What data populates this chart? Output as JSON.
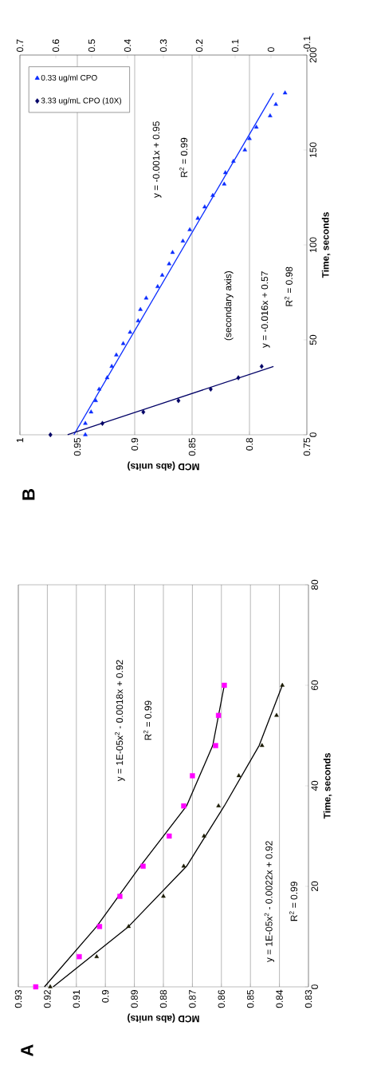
{
  "chart_data": [
    {
      "type": "scatter",
      "title": "A",
      "xlabel": "MCD (abs units)",
      "ylabel": "Time, seconds",
      "xlim": [
        0.93,
        0.83
      ],
      "xticks": [
        0.93,
        0.92,
        0.91,
        0.9,
        0.89,
        0.88,
        0.87,
        0.86,
        0.85,
        0.84,
        0.83
      ],
      "ylim": [
        0,
        80
      ],
      "yticks": [
        0,
        20,
        40,
        60,
        80
      ],
      "grid": "x",
      "series": [
        {
          "color": "#ff00ff",
          "marker": "square",
          "x": [
            0.924,
            0.909,
            0.902,
            0.895,
            0.887,
            0.878,
            0.873,
            0.87,
            0.862,
            0.861,
            0.859
          ],
          "values": [
            0,
            6,
            12,
            18,
            24,
            30,
            36,
            42,
            48,
            54,
            60
          ]
        },
        {
          "color": "#1a1a00",
          "marker": "triangle",
          "x": [
            0.919,
            0.903,
            0.892,
            0.88,
            0.873,
            0.866,
            0.861,
            0.854,
            0.846,
            0.841,
            0.839
          ],
          "values": [
            0,
            6,
            12,
            18,
            24,
            30,
            36,
            42,
            48,
            54,
            60
          ]
        },
        {
          "type": "line",
          "color": "#000000",
          "marker": "none",
          "x": [
            0.921,
            0.903,
            0.888,
            0.872,
            0.863,
            0.859
          ],
          "values": [
            0,
            12,
            24,
            36,
            48,
            60
          ]
        },
        {
          "type": "line",
          "color": "#000000",
          "marker": "none",
          "x": [
            0.918,
            0.892,
            0.872,
            0.859,
            0.847,
            0.839
          ],
          "values": [
            0,
            12,
            24,
            36,
            48,
            60
          ]
        }
      ],
      "annotations": [
        "y = 1E-05x$^{2}$ - 0.0018x + 0.92",
        "R$^{2}$ = 0.99",
        "y = 1E-05x$^{2}$ - 0.0022x + 0.92",
        "R$^{2}$ = 0.99"
      ]
    },
    {
      "type": "scatter",
      "title": "B",
      "xlabel": "MCD (abs units)",
      "ylabel": "Time, seconds",
      "xlim": [
        1,
        0.75
      ],
      "xticks": [
        1,
        0.95,
        0.9,
        0.85,
        0.8,
        0.75
      ],
      "x2lim": [
        0.7,
        -0.1
      ],
      "x2ticks": [
        0.7,
        0.6,
        0.5,
        0.4,
        0.3,
        0.2,
        0.1,
        0,
        -0.1
      ],
      "ylim": [
        0,
        200
      ],
      "yticks": [
        0,
        50,
        100,
        150,
        200
      ],
      "grid": "x",
      "legend": "top left",
      "series": [
        {
          "name": "0.33 ug/ml CPO",
          "color": "#0a2cff",
          "marker": "triangle",
          "x": [
            0.943,
            0.943,
            0.938,
            0.934,
            0.931,
            0.924,
            0.92,
            0.916,
            0.91,
            0.904,
            0.897,
            0.895,
            0.89,
            0.88,
            0.876,
            0.87,
            0.867,
            0.858,
            0.852,
            0.845,
            0.839,
            0.832,
            0.822,
            0.821,
            0.814,
            0.804,
            0.8,
            0.794,
            0.782,
            0.777,
            0.769
          ],
          "values": [
            0,
            6,
            12,
            18,
            24,
            30,
            36,
            42,
            48,
            54,
            60,
            66,
            72,
            78,
            84,
            90,
            96,
            102,
            108,
            114,
            120,
            126,
            132,
            138,
            144,
            150,
            156,
            162,
            168,
            174,
            180
          ]
        },
        {
          "name": "3.33 ug/mL CPO (10X)",
          "color": "#000066",
          "marker": "diamond",
          "axis": "x2",
          "x": [
            0.615,
            0.47,
            0.356,
            0.258,
            0.168,
            0.091,
            0.026
          ],
          "values": [
            0,
            6,
            12,
            18,
            24,
            30,
            36
          ]
        },
        {
          "type": "line",
          "color": "#0a2cff",
          "marker": "none",
          "x": [
            0.953,
            0.779
          ],
          "values": [
            0,
            180
          ]
        },
        {
          "type": "line",
          "color": "#000066",
          "marker": "none",
          "axis": "x2",
          "x": [
            0.567,
            -0.007
          ],
          "values": [
            0,
            36
          ]
        }
      ],
      "annotations": [
        "y = -0.001x + 0.95",
        "R$^{2}$ = 0.99",
        "(secondary axis)",
        "y = -0.016x + 0.57",
        "R$^{2}$ = 0.98"
      ]
    }
  ]
}
